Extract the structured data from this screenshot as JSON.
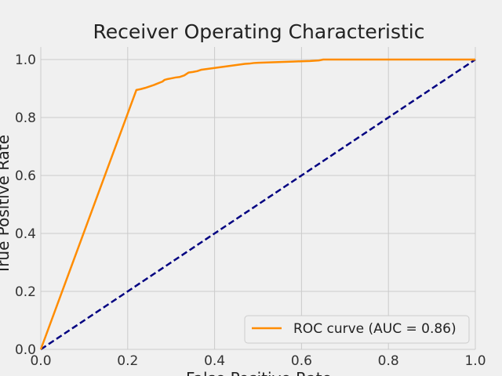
{
  "chart_data": {
    "type": "line",
    "title": "Receiver Operating Characteristic",
    "xlabel": "False Positive Rate",
    "ylabel": "True Positive Rate",
    "xlim": [
      0.0,
      1.0
    ],
    "ylim": [
      0.0,
      1.0
    ],
    "xticks": [
      "0.0",
      "0.2",
      "0.4",
      "0.6",
      "0.8",
      "1.0"
    ],
    "yticks": [
      "0.0",
      "0.2",
      "0.4",
      "0.6",
      "0.8",
      "1.0"
    ],
    "grid": true,
    "legend_position": "lower-right",
    "series": [
      {
        "name": "ROC curve (AUC = 0.86)",
        "color": "#ff8c00",
        "style": "solid",
        "x": [
          0.0,
          0.22,
          0.23,
          0.24,
          0.25,
          0.26,
          0.27,
          0.28,
          0.285,
          0.29,
          0.3,
          0.31,
          0.32,
          0.33,
          0.34,
          0.35,
          0.36,
          0.37,
          0.38,
          0.39,
          0.4,
          0.41,
          0.42,
          0.43,
          0.44,
          0.45,
          0.46,
          0.47,
          0.48,
          0.49,
          0.5,
          0.52,
          0.54,
          0.56,
          0.58,
          0.6,
          0.62,
          0.64,
          0.65,
          0.7,
          0.8,
          0.9,
          1.0
        ],
        "y": [
          0.0,
          0.895,
          0.898,
          0.902,
          0.907,
          0.912,
          0.918,
          0.924,
          0.93,
          0.932,
          0.935,
          0.938,
          0.94,
          0.945,
          0.955,
          0.957,
          0.96,
          0.965,
          0.967,
          0.969,
          0.971,
          0.973,
          0.975,
          0.977,
          0.979,
          0.981,
          0.983,
          0.985,
          0.986,
          0.988,
          0.989,
          0.99,
          0.991,
          0.992,
          0.993,
          0.994,
          0.995,
          0.997,
          1.0,
          1.0,
          1.0,
          1.0,
          1.0
        ]
      },
      {
        "name": "",
        "color": "#000080",
        "style": "dashed",
        "x": [
          0.0,
          1.0
        ],
        "y": [
          0.0,
          1.0
        ]
      }
    ]
  }
}
